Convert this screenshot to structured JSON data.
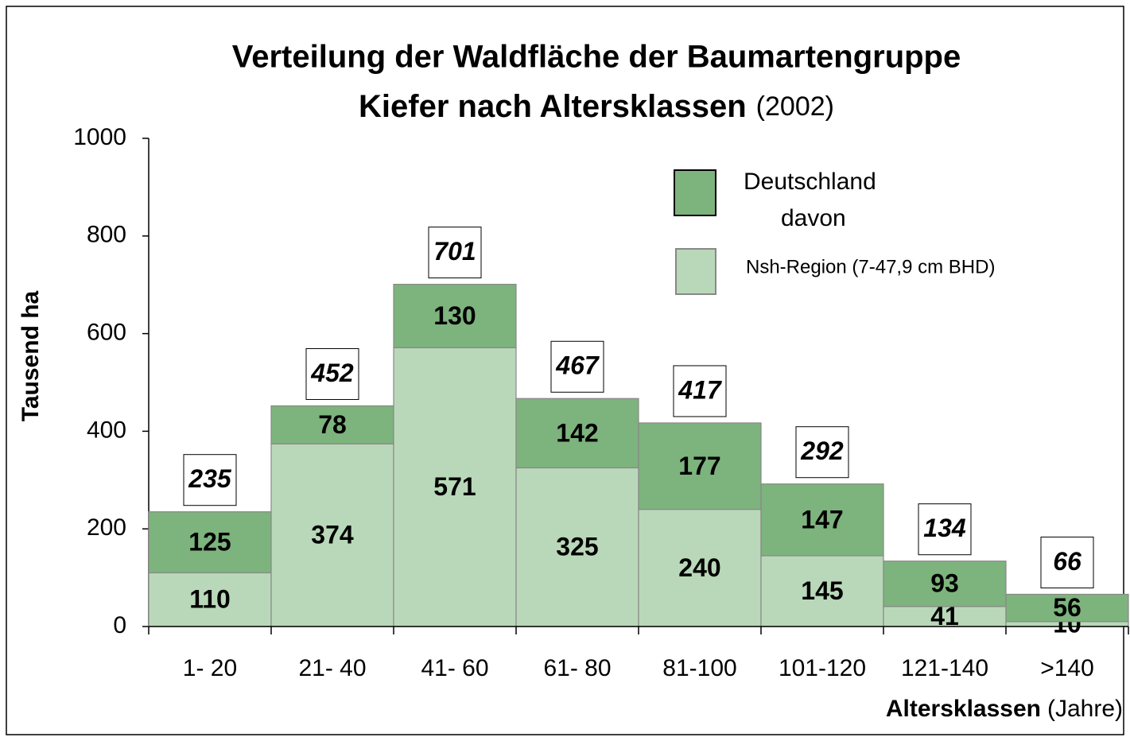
{
  "chart_data": {
    "type": "stacked_bar",
    "title_lines": [
      "Verteilung der Waldfläche der Baumartengruppe",
      "Kiefer nach Altersklassen"
    ],
    "title_note": "(2002)",
    "y_label": "Tausend ha",
    "x_label": "Altersklassen",
    "x_label_unit": "(Jahre)",
    "categories": [
      "1- 20",
      "21- 40",
      "41- 60",
      "61- 80",
      "81-100",
      "101-120",
      "121-140",
      ">140"
    ],
    "series": [
      {
        "name": "Nsh-Region (7-47,9 cm BHD)",
        "color": "#b9d8b9",
        "values": [
          110,
          374,
          571,
          325,
          240,
          145,
          41,
          10
        ]
      },
      {
        "name": "Deutschland",
        "color": "#7db37d",
        "values": [
          125,
          78,
          130,
          142,
          177,
          147,
          93,
          56
        ]
      }
    ],
    "legend_note": "davon",
    "totals": [
      235,
      452,
      701,
      467,
      417,
      292,
      134,
      66
    ],
    "ylim": [
      0,
      1000
    ],
    "yticks": [
      0,
      200,
      400,
      600,
      800,
      1000
    ]
  }
}
